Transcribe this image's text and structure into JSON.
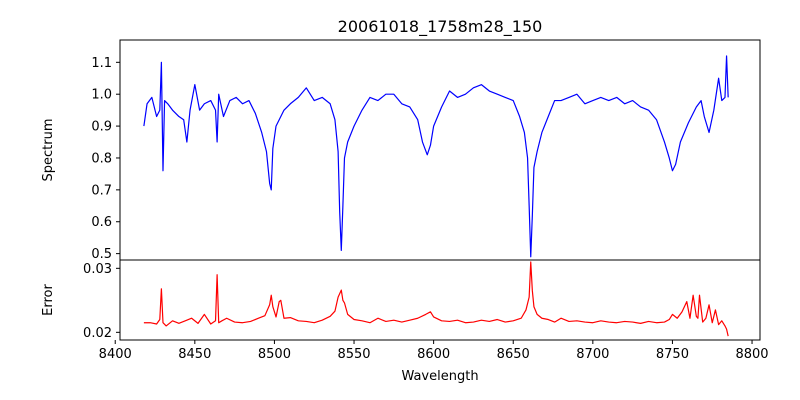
{
  "chart_data": [
    {
      "type": "line",
      "title": "20061018_1758m28_150",
      "ylabel": "Spectrum",
      "xlabel": "",
      "xlim": [
        8403,
        8805
      ],
      "ylim": [
        0.48,
        1.17
      ],
      "yticks": [
        0.5,
        0.6,
        0.7,
        0.8,
        0.9,
        1.0,
        1.1
      ],
      "ytick_labels": [
        "0.5",
        "0.6",
        "0.7",
        "0.8",
        "0.9",
        "1.0",
        "1.1"
      ],
      "grid": false,
      "series": [
        {
          "color": "#0000ff",
          "x": [
            8418,
            8420,
            8423,
            8426,
            8428,
            8429,
            8430,
            8431,
            8433,
            8436,
            8440,
            8443,
            8445,
            8447,
            8450,
            8453,
            8456,
            8460,
            8463,
            8464,
            8465,
            8468,
            8472,
            8476,
            8480,
            8484,
            8488,
            8492,
            8495,
            8497,
            8498,
            8499,
            8501,
            8503,
            8506,
            8510,
            8515,
            8520,
            8525,
            8530,
            8535,
            8538,
            8540,
            8541,
            8542,
            8543,
            8544,
            8546,
            8550,
            8555,
            8560,
            8565,
            8570,
            8575,
            8580,
            8585,
            8590,
            8593,
            8596,
            8598,
            8600,
            8605,
            8610,
            8615,
            8620,
            8625,
            8630,
            8635,
            8640,
            8645,
            8650,
            8654,
            8657,
            8659,
            8660,
            8661,
            8662,
            8663,
            8665,
            8668,
            8672,
            8676,
            8680,
            8685,
            8690,
            8695,
            8700,
            8705,
            8710,
            8715,
            8720,
            8725,
            8730,
            8735,
            8740,
            8745,
            8748,
            8750,
            8752,
            8755,
            8760,
            8765,
            8768,
            8770,
            8773,
            8776,
            8779,
            8781,
            8783,
            8784,
            8785
          ],
          "values": [
            0.9,
            0.97,
            0.99,
            0.93,
            0.95,
            1.1,
            0.76,
            0.98,
            0.97,
            0.95,
            0.93,
            0.92,
            0.85,
            0.95,
            1.03,
            0.95,
            0.97,
            0.98,
            0.95,
            0.85,
            1.0,
            0.93,
            0.98,
            0.99,
            0.97,
            0.98,
            0.94,
            0.88,
            0.82,
            0.72,
            0.7,
            0.83,
            0.9,
            0.92,
            0.95,
            0.97,
            0.99,
            1.02,
            0.98,
            0.99,
            0.97,
            0.92,
            0.82,
            0.63,
            0.51,
            0.65,
            0.8,
            0.85,
            0.9,
            0.95,
            0.99,
            0.98,
            1.0,
            1.0,
            0.97,
            0.96,
            0.92,
            0.85,
            0.81,
            0.84,
            0.9,
            0.96,
            1.01,
            0.99,
            1.0,
            1.02,
            1.03,
            1.01,
            1.0,
            0.99,
            0.98,
            0.93,
            0.88,
            0.8,
            0.65,
            0.49,
            0.62,
            0.77,
            0.82,
            0.88,
            0.93,
            0.98,
            0.98,
            0.99,
            1.0,
            0.97,
            0.98,
            0.99,
            0.98,
            0.99,
            0.97,
            0.98,
            0.96,
            0.95,
            0.92,
            0.85,
            0.8,
            0.76,
            0.78,
            0.85,
            0.91,
            0.96,
            0.98,
            0.93,
            0.88,
            0.95,
            1.05,
            0.98,
            0.99,
            1.12,
            0.99
          ]
        }
      ]
    },
    {
      "type": "line",
      "title": "",
      "ylabel": "Error",
      "xlabel": "Wavelength",
      "xlim": [
        8403,
        8805
      ],
      "ylim": [
        0.0188,
        0.0313
      ],
      "xticks": [
        8400,
        8450,
        8500,
        8550,
        8600,
        8650,
        8700,
        8750,
        8800
      ],
      "xtick_labels": [
        "8400",
        "8450",
        "8500",
        "8550",
        "8600",
        "8650",
        "8700",
        "8750",
        "8800"
      ],
      "yticks": [
        0.02,
        0.03
      ],
      "ytick_labels": [
        "0.02",
        "0.03"
      ],
      "grid": false,
      "series": [
        {
          "color": "#ff0000",
          "x": [
            8418,
            8422,
            8426,
            8428,
            8429,
            8430,
            8432,
            8436,
            8440,
            8444,
            8448,
            8452,
            8456,
            8460,
            8463,
            8464,
            8465,
            8467,
            8470,
            8475,
            8480,
            8485,
            8490,
            8494,
            8497,
            8498,
            8499,
            8501,
            8503,
            8504,
            8506,
            8510,
            8515,
            8520,
            8525,
            8530,
            8535,
            8538,
            8540,
            8542,
            8543,
            8544,
            8546,
            8550,
            8555,
            8560,
            8565,
            8570,
            8575,
            8580,
            8585,
            8590,
            8595,
            8598,
            8600,
            8605,
            8610,
            8615,
            8620,
            8625,
            8630,
            8635,
            8640,
            8645,
            8650,
            8655,
            8658,
            8660,
            8661,
            8662,
            8663,
            8665,
            8668,
            8672,
            8676,
            8680,
            8685,
            8690,
            8695,
            8700,
            8705,
            8710,
            8715,
            8720,
            8725,
            8730,
            8735,
            8740,
            8745,
            8748,
            8750,
            8753,
            8756,
            8759,
            8761,
            8763,
            8765,
            8766,
            8767,
            8769,
            8771,
            8773,
            8775,
            8777,
            8779,
            8781,
            8783,
            8784,
            8785
          ],
          "values": [
            0.0215,
            0.0215,
            0.0213,
            0.022,
            0.0268,
            0.0215,
            0.021,
            0.0218,
            0.0214,
            0.0218,
            0.0222,
            0.0214,
            0.0228,
            0.0213,
            0.0218,
            0.029,
            0.0215,
            0.0218,
            0.0222,
            0.0216,
            0.0215,
            0.0217,
            0.0222,
            0.0226,
            0.0243,
            0.0258,
            0.024,
            0.0224,
            0.0248,
            0.025,
            0.0222,
            0.0223,
            0.0218,
            0.0217,
            0.0215,
            0.0219,
            0.0225,
            0.0233,
            0.0255,
            0.0266,
            0.025,
            0.0246,
            0.0228,
            0.022,
            0.0218,
            0.0215,
            0.0222,
            0.0217,
            0.0219,
            0.0216,
            0.0219,
            0.0222,
            0.0228,
            0.0232,
            0.0224,
            0.0218,
            0.0217,
            0.0219,
            0.0215,
            0.0216,
            0.0219,
            0.0217,
            0.022,
            0.0216,
            0.0218,
            0.0222,
            0.0235,
            0.0255,
            0.031,
            0.0265,
            0.024,
            0.0228,
            0.0222,
            0.022,
            0.0216,
            0.0222,
            0.0217,
            0.0218,
            0.0216,
            0.0215,
            0.0218,
            0.0216,
            0.0215,
            0.0217,
            0.0216,
            0.0214,
            0.0217,
            0.0215,
            0.0216,
            0.022,
            0.0228,
            0.0222,
            0.0232,
            0.0248,
            0.0222,
            0.0258,
            0.0225,
            0.0222,
            0.0258,
            0.0216,
            0.0222,
            0.0243,
            0.0215,
            0.0235,
            0.0212,
            0.0218,
            0.021,
            0.0205,
            0.0194
          ]
        }
      ]
    }
  ]
}
